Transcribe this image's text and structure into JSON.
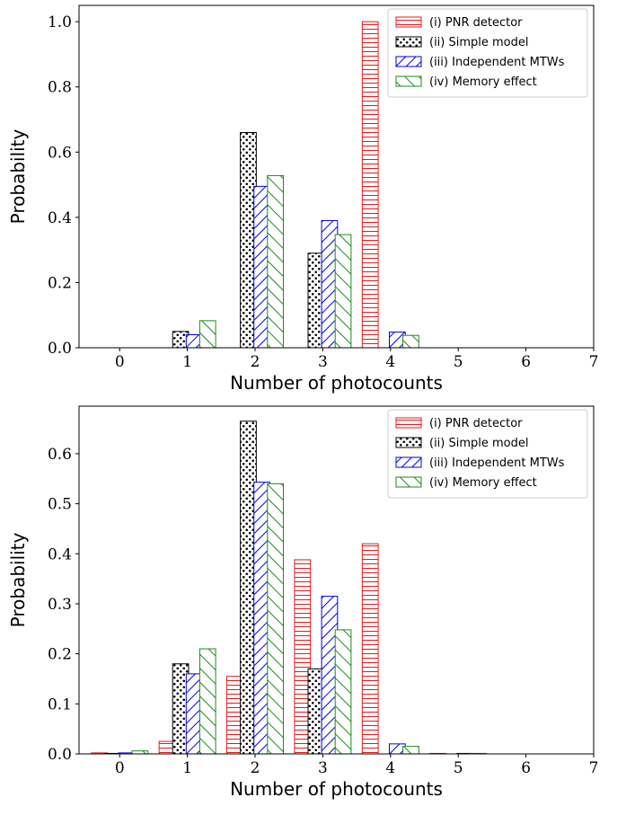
{
  "chart_data": [
    {
      "type": "bar",
      "title": "",
      "xlabel": "Number of photocounts",
      "ylabel": "Probability",
      "categories": [
        "0",
        "1",
        "2",
        "3",
        "4",
        "5",
        "6",
        "7"
      ],
      "xlim": [
        -0.6,
        7
      ],
      "ylim": [
        0,
        1.05
      ],
      "yticks": [
        "0.0",
        "0.2",
        "0.4",
        "0.6",
        "0.8",
        "1.0"
      ],
      "grid": false,
      "legend_position": "top-right",
      "series": [
        {
          "name": "(i) PNR detector",
          "color": "#e41a1c",
          "hatch": "horizontal-lines",
          "values": [
            0,
            0,
            0,
            0,
            1.0,
            0,
            0,
            0
          ]
        },
        {
          "name": "(ii) Simple model",
          "color": "#000000",
          "hatch": "dots",
          "values": [
            0,
            0.05,
            0.66,
            0.29,
            0,
            0,
            0,
            0
          ]
        },
        {
          "name": "(iii) Independent MTWs",
          "color": "#0000e6",
          "hatch": "diagonal-lines",
          "values": [
            0,
            0.04,
            0.495,
            0.39,
            0.048,
            0,
            0,
            0
          ]
        },
        {
          "name": "(iv) Memory effect",
          "color": "#1a8c1a",
          "hatch": "back-diagonal-lines",
          "values": [
            0,
            0.083,
            0.528,
            0.347,
            0.038,
            0,
            0,
            0
          ]
        }
      ]
    },
    {
      "type": "bar",
      "title": "",
      "xlabel": "Number of photocounts",
      "ylabel": "Probability",
      "categories": [
        "0",
        "1",
        "2",
        "3",
        "4",
        "5",
        "6",
        "7"
      ],
      "xlim": [
        -0.6,
        7
      ],
      "ylim": [
        0,
        0.695
      ],
      "yticks": [
        "0.0",
        "0.1",
        "0.2",
        "0.3",
        "0.4",
        "0.5",
        "0.6"
      ],
      "grid": false,
      "legend_position": "top-right",
      "series": [
        {
          "name": "(i) PNR detector",
          "color": "#e41a1c",
          "hatch": "horizontal-lines",
          "values": [
            0.002,
            0.025,
            0.155,
            0.388,
            0.42,
            0.001,
            0,
            0
          ]
        },
        {
          "name": "(ii) Simple model",
          "color": "#000000",
          "hatch": "dots",
          "values": [
            0.001,
            0.18,
            0.665,
            0.17,
            0,
            0,
            0,
            0
          ]
        },
        {
          "name": "(iii) Independent MTWs",
          "color": "#0000e6",
          "hatch": "diagonal-lines",
          "values": [
            0.002,
            0.16,
            0.543,
            0.315,
            0.02,
            0.001,
            0,
            0
          ]
        },
        {
          "name": "(iv) Memory effect",
          "color": "#1a8c1a",
          "hatch": "back-diagonal-lines",
          "values": [
            0.006,
            0.21,
            0.54,
            0.248,
            0.015,
            0.001,
            0,
            0
          ]
        }
      ]
    }
  ]
}
